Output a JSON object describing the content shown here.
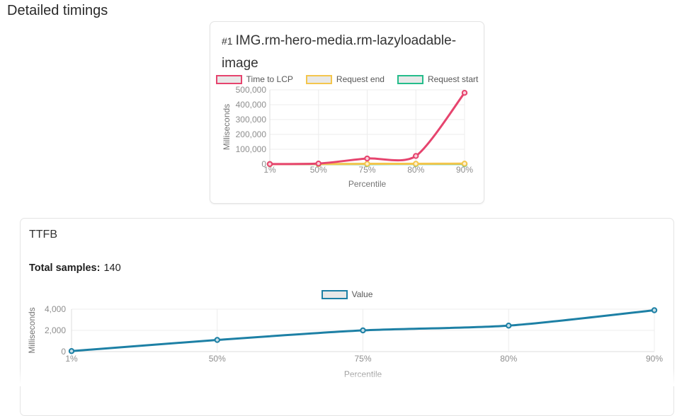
{
  "page": {
    "title": "Detailed timings"
  },
  "colors": {
    "time_to_lcp": "#e6446e",
    "request_end": "#f4c64d",
    "request_start": "#25bd8b",
    "value_series": "#1d80a5",
    "grid": "#ececec",
    "axis_line": "#dcdcdc"
  },
  "chart_data": [
    {
      "type": "line",
      "rank": "#1",
      "title": "IMG.rm-hero-media.rm-lazyloadable-image",
      "categories": [
        "1%",
        "50%",
        "75%",
        "80%",
        "90%"
      ],
      "series": [
        {
          "name": "Time to LCP",
          "color": "#e6446e",
          "values": [
            500,
            4000,
            38000,
            55000,
            480000
          ]
        },
        {
          "name": "Request end",
          "color": "#f4c64d",
          "values": [
            150,
            900,
            2200,
            2600,
            3400
          ]
        },
        {
          "name": "Request start",
          "color": "#25bd8b",
          "values": [
            50,
            300,
            700,
            900,
            1100
          ]
        }
      ],
      "xlabel": "Percentile",
      "ylabel": "Milliseconds",
      "ylim": [
        0,
        500000
      ],
      "yticks": [
        0,
        100000,
        200000,
        300000,
        400000,
        500000
      ],
      "ytick_labels": [
        "0",
        "100,000",
        "200,000",
        "300,000",
        "400,000",
        "500,000"
      ],
      "legend_position": "top",
      "grid": true
    },
    {
      "type": "line",
      "title": "TTFB",
      "total_samples_label": "Total samples:",
      "total_samples_value": "140",
      "categories": [
        "1%",
        "50%",
        "75%",
        "80%",
        "90%"
      ],
      "series": [
        {
          "name": "Value",
          "color": "#1d80a5",
          "values": [
            50,
            1100,
            2000,
            2450,
            3900
          ]
        }
      ],
      "xlabel": "Percentile",
      "ylabel": "Milliseconds",
      "ylim": [
        0,
        4000
      ],
      "yticks": [
        0,
        2000,
        4000
      ],
      "ytick_labels": [
        "0",
        "2,000",
        "4,000"
      ],
      "legend_position": "top",
      "grid": true
    }
  ]
}
